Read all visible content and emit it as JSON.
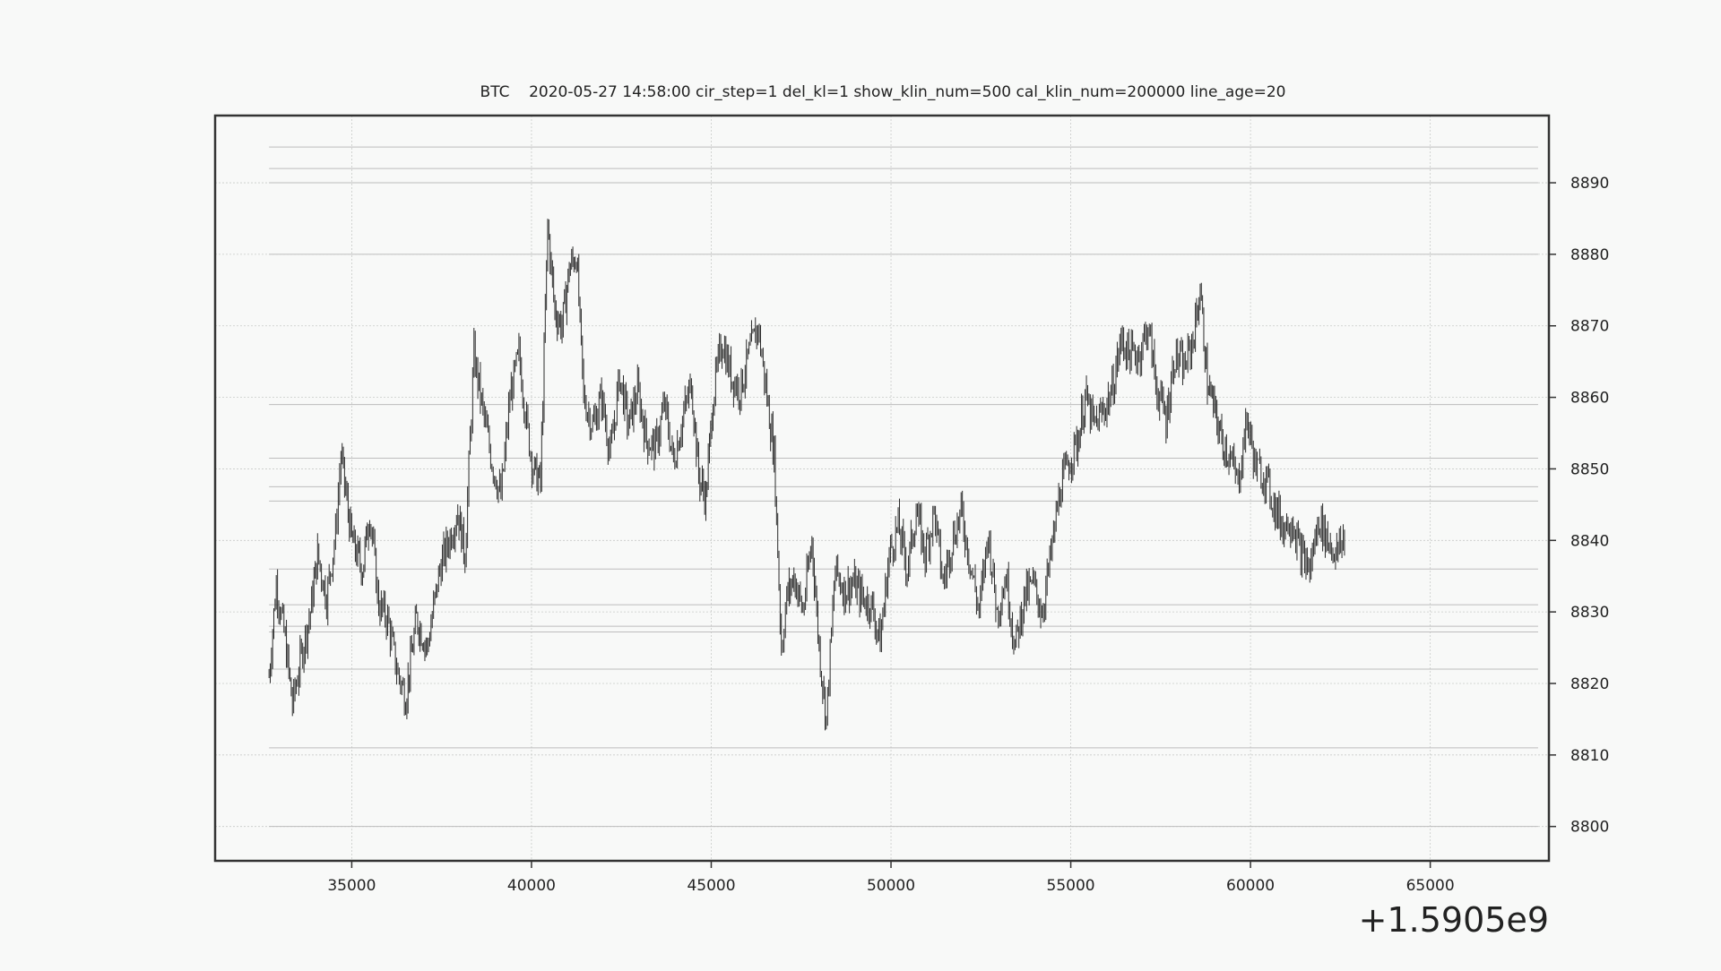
{
  "chart_data": {
    "type": "line",
    "title": "BTC    2020-05-27 14:58:00 cir_step=1 del_kl=1 show_klin_num=500 cal_klin_num=200000 line_age=20",
    "x_offset_label": "+1.5905e9",
    "xlim": [
      31200,
      68300
    ],
    "ylim": [
      8795.2,
      8899.4
    ],
    "x_ticks": [
      35000,
      40000,
      45000,
      50000,
      55000,
      60000,
      65000
    ],
    "y_ticks": [
      8800,
      8810,
      8820,
      8830,
      8840,
      8850,
      8860,
      8870,
      8880,
      8890
    ],
    "grid": true,
    "y_axis_side": "right",
    "horizontal_levels": [
      8800,
      8811,
      8822,
      8827.2,
      8828,
      8831,
      8836,
      8845.5,
      8847.5,
      8851.5,
      8859,
      8880,
      8890,
      8892,
      8895
    ],
    "horizontal_levels_x_range": [
      32700,
      68000
    ],
    "series": [
      {
        "x": [
          32700,
          32900,
          33150,
          33350,
          33600,
          33850,
          34050,
          34300,
          34550,
          34700,
          35000,
          35300,
          35500,
          35750,
          36000,
          36250,
          36500,
          36800,
          37100,
          37450,
          37700,
          37950,
          38150,
          38400,
          38650,
          38900,
          39150,
          39400,
          39650,
          39900,
          40050,
          40250,
          40450,
          40650,
          40850,
          41050,
          41250,
          41450,
          41700,
          41950,
          42200,
          42450,
          42700,
          42950,
          43200,
          43450,
          43700,
          43950,
          44200,
          44450,
          44650,
          44850,
          45050,
          45300,
          45550,
          45800,
          46050,
          46300,
          46550,
          46750,
          46950,
          47100,
          47300,
          47550,
          47800,
          48000,
          48200,
          48450,
          48700,
          48950,
          49200,
          49450,
          49700,
          49950,
          50200,
          50450,
          50700,
          50950,
          51200,
          51450,
          51700,
          51950,
          52200,
          52450,
          52700,
          52950,
          53200,
          53450,
          53700,
          53950,
          54200,
          54450,
          54700,
          54950,
          55200,
          55400,
          55650,
          55900,
          56150,
          56400,
          56650,
          56900,
          57150,
          57400,
          57650,
          57900,
          58150,
          58400,
          58600,
          58800,
          59000,
          59200,
          59400,
          59650,
          59900,
          60150,
          60400,
          60650,
          60900,
          61150,
          61400,
          61650,
          61900,
          62150,
          62400,
          62650
        ],
        "y": [
          8821,
          8834,
          8826,
          8817,
          8824,
          8830,
          8838,
          8832,
          8841,
          8852,
          8840,
          8836,
          8844,
          8831,
          8829,
          8822,
          8818,
          8829,
          8825,
          8836,
          8840,
          8844,
          8838,
          8866,
          8858,
          8851,
          8846,
          8860,
          8866,
          8855,
          8850,
          8848,
          8884,
          8872,
          8870,
          8878,
          8880,
          8860,
          8856,
          8860,
          8852,
          8863,
          8856,
          8861,
          8854,
          8853,
          8859,
          8851,
          8857,
          8862,
          8849,
          8846,
          8860,
          8868,
          8863,
          8861,
          8866,
          8870,
          8860,
          8852,
          8825,
          8832,
          8835,
          8830,
          8840,
          8825,
          8815,
          8836,
          8833,
          8834,
          8832,
          8831,
          8826,
          8838,
          8842,
          8836,
          8844,
          8838,
          8844,
          8834,
          8840,
          8844,
          8837,
          8830,
          8841,
          8830,
          8835,
          8825,
          8832,
          8834,
          8830,
          8838,
          8847,
          8851,
          8854,
          8860,
          8856,
          8858,
          8861,
          8868,
          8866,
          8866,
          8870,
          8861,
          8857,
          8866,
          8864,
          8868,
          8875,
          8862,
          8858,
          8854,
          8852,
          8848,
          8857,
          8850,
          8849,
          8845,
          8842,
          8843,
          8838,
          8836,
          8843,
          8840,
          8838,
          8841
        ]
      }
    ]
  }
}
